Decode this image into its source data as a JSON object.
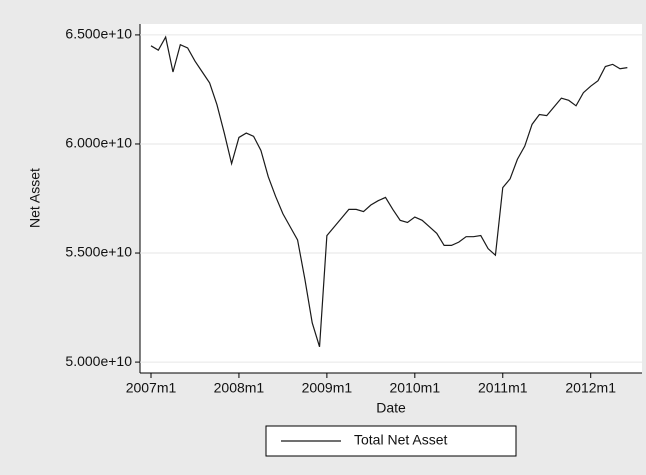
{
  "chart_data": {
    "type": "line",
    "y_label": "Net Asset",
    "x_label": "Date",
    "x": [
      564,
      565,
      566,
      567,
      568,
      569,
      570,
      571,
      572,
      573,
      574,
      575,
      576,
      577,
      578,
      579,
      580,
      581,
      582,
      583,
      584,
      585,
      586,
      587,
      588,
      589,
      590,
      591,
      592,
      593,
      594,
      595,
      596,
      597,
      598,
      599,
      600,
      601,
      602,
      603,
      604,
      605,
      606,
      607,
      608,
      609,
      610,
      611,
      612,
      613,
      614,
      615,
      616,
      617,
      618,
      619,
      620,
      621,
      622,
      623,
      624,
      625,
      626,
      627,
      628,
      629
    ],
    "series": [
      {
        "name": "Total Net Asset",
        "color": "#1a1a1a",
        "values": [
          64500000000.0,
          64300000000.0,
          64900000000.0,
          63300000000.0,
          64550000000.0,
          64400000000.0,
          63800000000.0,
          63300000000.0,
          62800000000.0,
          61800000000.0,
          60500000000.0,
          59100000000.0,
          60300000000.0,
          60500000000.0,
          60350000000.0,
          59700000000.0,
          58500000000.0,
          57600000000.0,
          56800000000.0,
          56200000000.0,
          55600000000.0,
          53800000000.0,
          51800000000.0,
          50700000000.0,
          55800000000.0,
          56200000000.0,
          56600000000.0,
          57000000000.0,
          57000000000.0,
          56900000000.0,
          57200000000.0,
          57400000000.0,
          57550000000.0,
          57000000000.0,
          56500000000.0,
          56400000000.0,
          56650000000.0,
          56500000000.0,
          56200000000.0,
          55900000000.0,
          55350000000.0,
          55350000000.0,
          55500000000.0,
          55750000000.0,
          55750000000.0,
          55800000000.0,
          55200000000.0,
          54900000000.0,
          58000000000.0,
          58400000000.0,
          59300000000.0,
          59900000000.0,
          60900000000.0,
          61350000000.0,
          61300000000.0,
          61700000000.0,
          62100000000.0,
          62000000000.0,
          61750000000.0,
          62350000000.0,
          62650000000.0,
          62900000000.0,
          63550000000.0,
          63650000000.0,
          63450000000.0,
          63500000000.0
        ]
      }
    ],
    "xlim": [
      562.5,
      631
    ],
    "xticks": [
      {
        "value": 564,
        "label": "2007m1"
      },
      {
        "value": 576,
        "label": "2008m1"
      },
      {
        "value": 588,
        "label": "2009m1"
      },
      {
        "value": 600,
        "label": "2010m1"
      },
      {
        "value": 612,
        "label": "2011m1"
      },
      {
        "value": 624,
        "label": "2012m1"
      }
    ],
    "ylim": [
      49500000000.0,
      65500000000.0
    ],
    "yticks": [
      {
        "value": 50000000000.0,
        "label": "5.000e+10"
      },
      {
        "value": 55000000000.0,
        "label": "5.500e+10"
      },
      {
        "value": 60000000000.0,
        "label": "6.000e+10"
      },
      {
        "value": 65000000000.0,
        "label": "6.500e+10"
      }
    ],
    "grid": true,
    "legend": "bottom"
  }
}
